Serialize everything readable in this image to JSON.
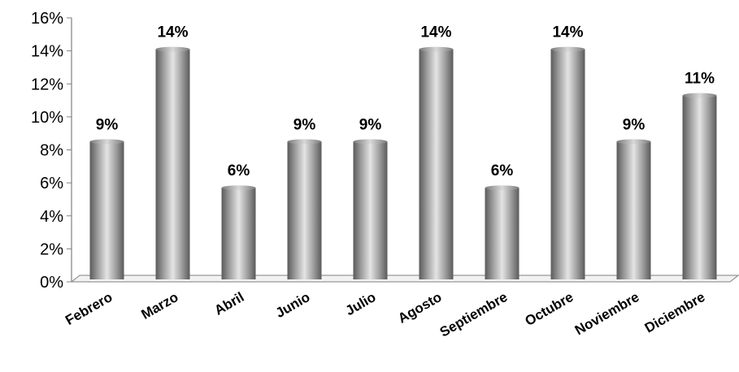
{
  "chart_data": {
    "type": "bar",
    "categories": [
      "Febrero",
      "Marzo",
      "Abril",
      "Junio",
      "Julio",
      "Agosto",
      "Septiembre",
      "Octubre",
      "Noviembre",
      "Diciembre"
    ],
    "values": [
      8.5,
      14.1,
      5.7,
      8.5,
      8.5,
      14.1,
      5.7,
      14.1,
      8.5,
      11.3
    ],
    "data_labels": [
      "9%",
      "14%",
      "6%",
      "9%",
      "9%",
      "14%",
      "6%",
      "14%",
      "9%",
      "11%"
    ],
    "y_ticks": [
      "0%",
      "2%",
      "4%",
      "6%",
      "8%",
      "10%",
      "12%",
      "14%",
      "16%"
    ],
    "ylim": [
      0,
      16
    ],
    "title": "",
    "xlabel": "",
    "ylabel": "",
    "grid": false,
    "legend": "none",
    "style": "3d-cylinder",
    "bar_color": "#9a9a9a"
  }
}
